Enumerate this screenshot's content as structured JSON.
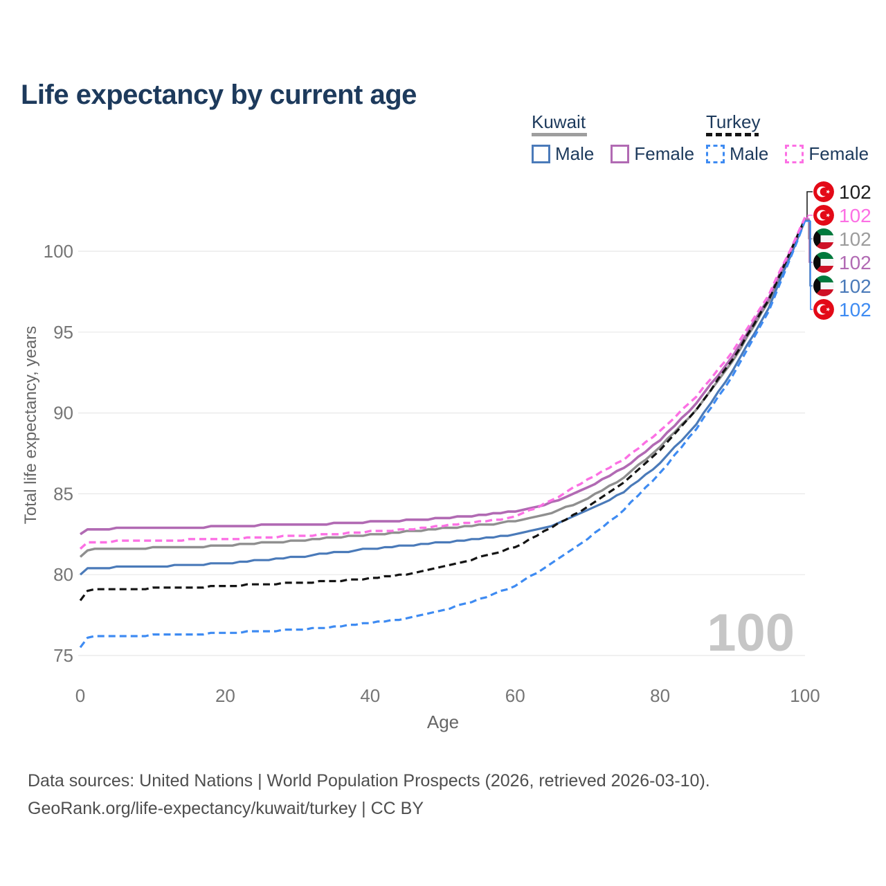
{
  "title": "Life expectancy by current age",
  "legend": {
    "groups": [
      {
        "country": "Kuwait",
        "line_style": "solid",
        "underline_color": "#9e9e9e",
        "items": [
          {
            "label": "Male",
            "color": "#4a7ab9",
            "dashed": false
          },
          {
            "label": "Female",
            "color": "#b16ab3",
            "dashed": false
          }
        ]
      },
      {
        "country": "Turkey",
        "line_style": "dashed",
        "underline_color": "#141414",
        "items": [
          {
            "label": "Male",
            "color": "#3e8bf2",
            "dashed": true
          },
          {
            "label": "Female",
            "color": "#fc70e4",
            "dashed": true
          }
        ]
      }
    ]
  },
  "chart_data": {
    "type": "line",
    "title": "Life expectancy by current age",
    "xlabel": "Age",
    "ylabel": "Total life expectancy, years",
    "xlim": [
      0,
      100
    ],
    "ylim": [
      74.5,
      102.5
    ],
    "xticks": [
      0,
      20,
      40,
      60,
      80,
      100
    ],
    "yticks": [
      75,
      80,
      85,
      90,
      95,
      100
    ],
    "grid": true,
    "grid_color": "#e8e8e8",
    "tick_color": "#757575",
    "age_indicator": "100",
    "age_indicator_color": "#c6c6c6",
    "anchor_ages": [
      0,
      1,
      2,
      5,
      10,
      15,
      20,
      25,
      30,
      35,
      40,
      45,
      50,
      55,
      60,
      65,
      70,
      75,
      80,
      85,
      90,
      95,
      100
    ],
    "series": [
      {
        "name": "Kuwait Total",
        "country": "Kuwait",
        "sex": "Total",
        "color": "#8f8f8f",
        "dashed": false,
        "width": 3.4,
        "values": [
          81.1,
          81.5,
          81.55,
          81.6,
          81.65,
          81.7,
          81.8,
          81.95,
          82.1,
          82.3,
          82.45,
          82.65,
          82.85,
          83.05,
          83.3,
          83.8,
          84.7,
          86.0,
          87.9,
          90.2,
          93.2,
          96.9,
          101.95
        ]
      },
      {
        "name": "Kuwait Male",
        "country": "Kuwait",
        "sex": "Male",
        "color": "#4a7ab9",
        "dashed": false,
        "width": 3.2,
        "values": [
          80.0,
          80.35,
          80.4,
          80.45,
          80.5,
          80.6,
          80.7,
          80.9,
          81.1,
          81.35,
          81.6,
          81.8,
          82.0,
          82.2,
          82.45,
          82.95,
          83.95,
          85.1,
          86.9,
          89.3,
          92.6,
          96.5,
          101.9
        ]
      },
      {
        "name": "Kuwait Female",
        "country": "Kuwait",
        "sex": "Female",
        "color": "#b16ab3",
        "dashed": false,
        "width": 3.6,
        "values": [
          82.45,
          82.75,
          82.8,
          82.85,
          82.9,
          82.9,
          83.0,
          83.05,
          83.1,
          83.15,
          83.25,
          83.35,
          83.5,
          83.65,
          83.9,
          84.45,
          85.35,
          86.6,
          88.3,
          90.6,
          93.5,
          97.1,
          102.0
        ]
      },
      {
        "name": "Turkey Total",
        "country": "Turkey",
        "sex": "Total",
        "color": "#141414",
        "dashed": true,
        "width": 3.2,
        "values": [
          78.4,
          79.0,
          79.05,
          79.1,
          79.15,
          79.2,
          79.3,
          79.4,
          79.5,
          79.6,
          79.75,
          80.0,
          80.5,
          81.05,
          81.7,
          82.9,
          84.2,
          85.7,
          87.7,
          90.2,
          93.3,
          97.0,
          102.0
        ]
      },
      {
        "name": "Turkey Male",
        "country": "Turkey",
        "sex": "Male",
        "color": "#3e8bf2",
        "dashed": true,
        "width": 3.2,
        "values": [
          75.5,
          76.1,
          76.15,
          76.2,
          76.25,
          76.3,
          76.4,
          76.5,
          76.6,
          76.75,
          77.0,
          77.3,
          77.8,
          78.45,
          79.3,
          80.7,
          82.2,
          84.0,
          86.3,
          89.0,
          92.3,
          96.3,
          101.85
        ]
      },
      {
        "name": "Turkey Female",
        "country": "Turkey",
        "sex": "Female",
        "color": "#fc70e4",
        "dashed": true,
        "width": 3.4,
        "values": [
          81.55,
          81.95,
          82.0,
          82.05,
          82.1,
          82.15,
          82.2,
          82.3,
          82.4,
          82.5,
          82.65,
          82.8,
          83.0,
          83.25,
          83.55,
          84.55,
          85.9,
          87.1,
          88.9,
          91.0,
          93.8,
          97.3,
          102.05
        ]
      }
    ],
    "end_labels": [
      {
        "flag": "turkey",
        "value": "102",
        "color": "#1f1f1f",
        "series": "Turkey Total"
      },
      {
        "flag": "turkey",
        "value": "102",
        "color": "#fc70e4",
        "series": "Turkey Female"
      },
      {
        "flag": "kuwait",
        "value": "102",
        "color": "#9c9c9c",
        "series": "Kuwait Total"
      },
      {
        "flag": "kuwait",
        "value": "102",
        "color": "#b16ab3",
        "series": "Kuwait Female"
      },
      {
        "flag": "kuwait",
        "value": "102",
        "color": "#4a7ab9",
        "series": "Kuwait Male"
      },
      {
        "flag": "turkey",
        "value": "102",
        "color": "#3e8bf2",
        "series": "Turkey Male"
      }
    ],
    "flag_colors": {
      "turkey_red": "#e30a17",
      "kuwait_green": "#007a3d",
      "kuwait_white": "#f6f6f6",
      "kuwait_red": "#ce1126",
      "kuwait_black": "#0a0a0a"
    }
  },
  "footer": {
    "line1": "Data sources: United Nations | World Population Prospects (2026, retrieved 2026-03-10).",
    "line2": "GeoRank.org/life-expectancy/kuwait/turkey | CC BY"
  }
}
